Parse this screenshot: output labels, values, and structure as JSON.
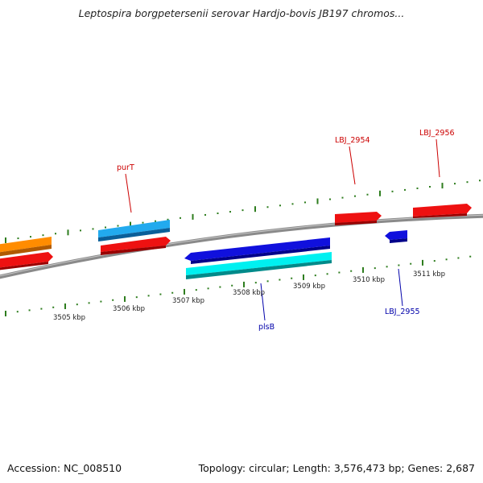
{
  "header": {
    "title": "Leptospira borgpetersenii serovar Hardjo-bovis JB197 chromos..."
  },
  "footer": {
    "accession": "Accession: NC_008510",
    "summary": "Topology: circular; Length: 3,576,473 bp; Genes: 2,687"
  },
  "colors": {
    "backbone": "#8a8a8a",
    "tick": "#2e7d1e",
    "gene_red": "#ee1111",
    "gene_orange": "#ff8c00",
    "gene_skyblue": "#22aaee",
    "gene_blue": "#1010dd",
    "gene_cyan": "#00f0f0",
    "label_red": "#cc0000",
    "label_blue": "#0000aa"
  },
  "scale": {
    "tick_labels": [
      "3505 kbp",
      "3506 kbp",
      "3507 kbp",
      "3508 kbp",
      "3509 kbp",
      "3510 kbp",
      "3511 kbp"
    ]
  },
  "genes": {
    "labels": [
      "purT",
      "LBJ_2954",
      "LBJ_2956",
      "plsB",
      "LBJ_2955"
    ]
  }
}
